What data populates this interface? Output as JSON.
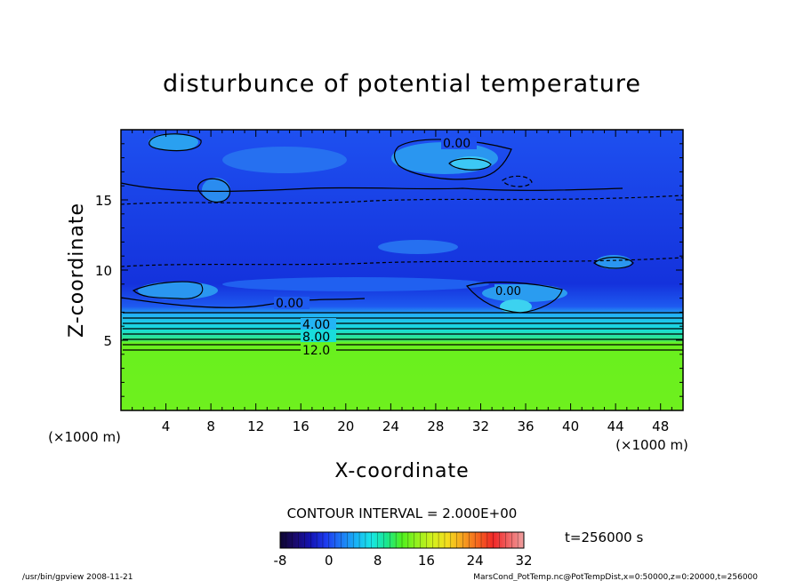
{
  "chart_data": {
    "type": "heatmap",
    "title": "disturbunce of potential temperature",
    "xlabel": "X-coordinate",
    "ylabel": "Z-coordinate",
    "x_unit": "(×1000 m)",
    "z_unit": "(×1000 m)",
    "xlim": [
      0,
      50
    ],
    "ylim": [
      0,
      20
    ],
    "x_ticks": [
      "4",
      "8",
      "12",
      "16",
      "20",
      "24",
      "28",
      "32",
      "36",
      "40",
      "44",
      "48"
    ],
    "y_ticks": [
      "5",
      "10",
      "15"
    ],
    "contour_interval_text": "CONTOUR INTERVAL = 2.000E+00",
    "time_text": "t=256000 s",
    "colorbar": {
      "min": -8,
      "max": 32,
      "tick_labels": [
        "-8",
        "0",
        "8",
        "16",
        "24",
        "32"
      ],
      "colors": [
        "#0d0630",
        "#1a0a6e",
        "#1414b4",
        "#1e3cf0",
        "#1e78f5",
        "#19b4f5",
        "#19e6e6",
        "#19e68c",
        "#50f01e",
        "#96f01e",
        "#d2f01e",
        "#f5dc1e",
        "#f5a01e",
        "#f5641e",
        "#f02828",
        "#f06464",
        "#f0a0a0"
      ]
    },
    "contour_labels": [
      "0.00",
      "0.00",
      "0.00",
      "4.00",
      "8.00",
      "12.0"
    ],
    "footer_left": "/usr/bin/gpview   2008-11-21",
    "footer_right": "MarsCond_PotTemp.nc@PotTempDist,x=0:50000,z=0:20000,t=256000"
  }
}
